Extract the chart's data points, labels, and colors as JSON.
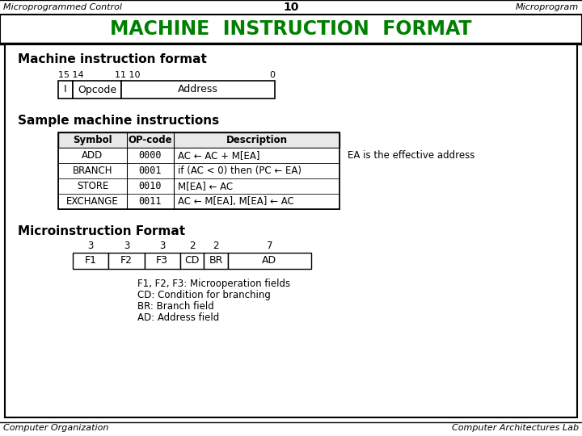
{
  "title_top_left": "Microprogrammed Control",
  "title_top_center": "10",
  "title_top_right": "Microprogram",
  "main_title": "MACHINE  INSTRUCTION  FORMAT",
  "section1_title": "Machine instruction format",
  "bit_labels_text": [
    "15 14",
    "11 10",
    "0"
  ],
  "field_labels": [
    "I",
    "Opcode",
    "Address"
  ],
  "section2_title": "Sample machine instructions",
  "table_headers": [
    "Symbol",
    "OP-code",
    "Description"
  ],
  "table_data": [
    [
      "ADD",
      "0000",
      "AC ← AC + M[EA]"
    ],
    [
      "BRANCH",
      "0001",
      "if (AC < 0) then (PC ← EA)"
    ],
    [
      "STORE",
      "0010",
      "M[EA] ← AC"
    ],
    [
      "EXCHANGE",
      "0011",
      "AC ← M[EA], M[EA] ← AC"
    ]
  ],
  "ea_note": "EA is the effective address",
  "section3_title": "Microinstruction Format",
  "micro_bit_widths": [
    3,
    3,
    3,
    2,
    2,
    7
  ],
  "micro_fields": [
    "F1",
    "F2",
    "F3",
    "CD",
    "BR",
    "AD"
  ],
  "micro_notes": [
    "F1, F2, F3: Microoperation fields",
    "CD: Condition for branching",
    "BR: Branch field",
    "AD: Address field"
  ],
  "bottom_left": "Computer Organization",
  "bottom_right": "Computer Architectures Lab",
  "green_color": "#008000",
  "bg_color": "#ffffff"
}
